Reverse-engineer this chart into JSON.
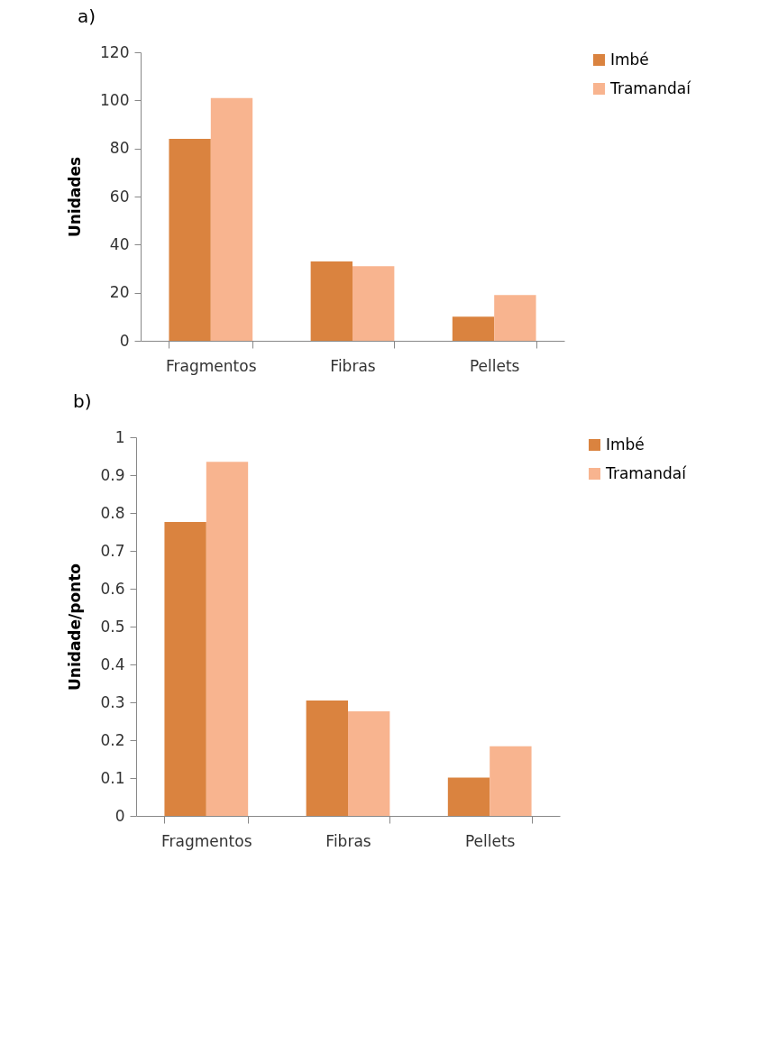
{
  "chart_data": [
    {
      "type": "bar",
      "title": "a)",
      "ylabel": "Unidades",
      "categories": [
        "Fragmentos",
        "Fibras",
        "Pellets"
      ],
      "series": [
        {
          "name": "Imbé",
          "color": "#da833f",
          "values": [
            84,
            33,
            10
          ]
        },
        {
          "name": "Tramandaí",
          "color": "#f8b48f",
          "values": [
            101,
            31,
            19
          ]
        }
      ],
      "ylim": [
        0,
        120
      ],
      "yticks": [
        0,
        20,
        40,
        60,
        80,
        100,
        120
      ],
      "grid": false,
      "legend": "right"
    },
    {
      "type": "bar",
      "title": "b)",
      "ylabel": "Unidade/ponto",
      "categories": [
        "Fragmentos",
        "Fibras",
        "Pellets"
      ],
      "series": [
        {
          "name": "Imbé",
          "color": "#da833f",
          "values": [
            0.776,
            0.305,
            0.101
          ]
        },
        {
          "name": "Tramandaí",
          "color": "#f8b48f",
          "values": [
            0.935,
            0.276,
            0.184
          ]
        }
      ],
      "ylim": [
        0,
        1
      ],
      "yticks": [
        0,
        0.1,
        0.2,
        0.3,
        0.4,
        0.5,
        0.6,
        0.7,
        0.8,
        0.9,
        1
      ],
      "grid": false,
      "legend": "right"
    }
  ]
}
